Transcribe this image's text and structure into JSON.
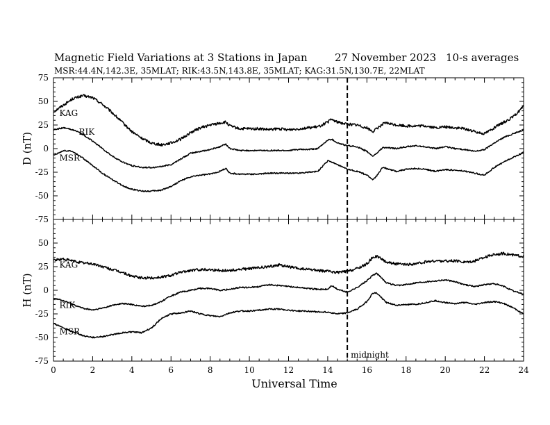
{
  "header": {
    "title": "Magnetic Field Variations at 3 Stations in Japan",
    "date": "27 November 2023",
    "averaging": "10-s averages",
    "stations_line": "MSR:44.4N,142.3E, 35MLAT;  RIK:43.5N,143.8E, 35MLAT;  KAG:31.5N,130.7E, 22MLAT"
  },
  "chart_data": [
    {
      "type": "line",
      "panel": "D",
      "ylabel": "D (nT)",
      "xlabel": "",
      "xlim": [
        0,
        24
      ],
      "ylim": [
        -75,
        75
      ],
      "y_ticks": [
        75,
        50,
        25,
        0,
        -25,
        -50,
        -75
      ],
      "series": [
        {
          "name": "KAG",
          "x": [
            0,
            0.5,
            1,
            1.5,
            2,
            2.5,
            3,
            3.5,
            4,
            4.5,
            5,
            5.5,
            6,
            6.5,
            7,
            7.5,
            8,
            8.5,
            8.8,
            9,
            9.5,
            10,
            10.5,
            11,
            11.5,
            12,
            12.5,
            13,
            13.5,
            14,
            14.2,
            14.5,
            15,
            15.5,
            16,
            16.3,
            16.5,
            16.8,
            17,
            17.5,
            18,
            18.5,
            19,
            19.5,
            20,
            20.5,
            21,
            21.5,
            22,
            22.5,
            23,
            23.5,
            24
          ],
          "y": [
            39,
            46,
            53,
            56,
            54,
            47,
            38,
            28,
            18,
            11,
            6,
            4,
            6,
            10,
            17,
            22,
            25,
            27,
            28,
            24,
            21,
            21,
            21,
            20,
            21,
            20,
            21,
            22,
            23,
            28,
            31,
            28,
            26,
            25,
            22,
            18,
            21,
            26,
            27,
            25,
            24,
            24,
            24,
            22,
            23,
            22,
            21,
            18,
            16,
            22,
            28,
            34,
            45
          ]
        },
        {
          "name": "RIK",
          "x": [
            0,
            0.5,
            1,
            1.5,
            2,
            2.5,
            3,
            3.5,
            4,
            4.5,
            5,
            5.5,
            6,
            6.5,
            7,
            7.5,
            8,
            8.5,
            8.8,
            9,
            9.5,
            10,
            10.5,
            11,
            11.5,
            12,
            12.5,
            13,
            13.5,
            14,
            14.2,
            14.5,
            15,
            15.5,
            16,
            16.3,
            16.5,
            16.8,
            17,
            17.5,
            18,
            18.5,
            19,
            19.5,
            20,
            20.5,
            21,
            21.5,
            22,
            22.5,
            23,
            23.5,
            24
          ],
          "y": [
            20,
            22,
            20,
            15,
            8,
            0,
            -8,
            -14,
            -18,
            -20,
            -20,
            -19,
            -17,
            -11,
            -5,
            -3,
            -1,
            2,
            5,
            0,
            -2,
            -2,
            -2,
            -2,
            -2,
            -2,
            -1,
            -1,
            0,
            9,
            10,
            6,
            3,
            2,
            -3,
            -8,
            -5,
            1,
            1,
            0,
            2,
            3,
            2,
            0,
            2,
            0,
            -1,
            -3,
            -1,
            6,
            12,
            16,
            20
          ]
        },
        {
          "name": "MSR",
          "x": [
            0,
            0.5,
            1,
            1.5,
            2,
            2.5,
            3,
            3.5,
            4,
            4.5,
            5,
            5.5,
            6,
            6.5,
            7,
            7.5,
            8,
            8.5,
            8.8,
            9,
            9.5,
            10,
            10.5,
            11,
            11.5,
            12,
            12.5,
            13,
            13.5,
            14,
            14.2,
            14.5,
            15,
            15.5,
            16,
            16.3,
            16.5,
            16.8,
            17,
            17.5,
            18,
            18.5,
            19,
            19.5,
            20,
            20.5,
            21,
            21.5,
            22,
            22.5,
            23,
            23.5,
            24
          ],
          "y": [
            -7,
            -2,
            -3,
            -10,
            -18,
            -26,
            -33,
            -39,
            -43,
            -45,
            -45,
            -44,
            -40,
            -34,
            -30,
            -28,
            -27,
            -24,
            -21,
            -26,
            -27,
            -27,
            -27,
            -26,
            -26,
            -26,
            -26,
            -25,
            -24,
            -13,
            -14,
            -17,
            -22,
            -24,
            -28,
            -33,
            -29,
            -20,
            -21,
            -24,
            -22,
            -21,
            -22,
            -24,
            -22,
            -23,
            -24,
            -26,
            -28,
            -20,
            -14,
            -9,
            -4
          ]
        }
      ]
    },
    {
      "type": "line",
      "panel": "H",
      "ylabel": "H (nT)",
      "xlabel": "Universal Time",
      "xlim": [
        0,
        24
      ],
      "ylim": [
        -75,
        75
      ],
      "x_ticks": [
        0,
        2,
        4,
        6,
        8,
        10,
        12,
        14,
        16,
        18,
        20,
        22,
        24
      ],
      "y_ticks": [
        50,
        25,
        0,
        -25,
        -50,
        -75
      ],
      "series": [
        {
          "name": "KAG",
          "x": [
            0,
            0.5,
            1,
            1.5,
            2,
            2.5,
            3,
            3.5,
            4,
            4.5,
            5,
            5.5,
            6,
            6.5,
            7,
            7.5,
            8,
            8.5,
            9,
            9.5,
            10,
            10.5,
            11,
            11.5,
            12,
            12.5,
            13,
            13.5,
            14,
            14.5,
            15,
            15.5,
            16,
            16.3,
            16.5,
            17,
            17.5,
            18,
            18.5,
            19,
            19.5,
            20,
            20.5,
            21,
            21.5,
            22,
            22.5,
            23,
            23.5,
            24
          ],
          "y": [
            32,
            33,
            31,
            29,
            28,
            25,
            22,
            19,
            15,
            13,
            13,
            14,
            16,
            19,
            21,
            22,
            22,
            21,
            21,
            22,
            23,
            24,
            25,
            27,
            25,
            23,
            22,
            21,
            20,
            19,
            20,
            23,
            28,
            35,
            36,
            30,
            28,
            27,
            28,
            30,
            31,
            31,
            31,
            30,
            31,
            35,
            38,
            39,
            37,
            36
          ]
        },
        {
          "name": "RIK",
          "x": [
            0,
            0.5,
            1,
            1.5,
            2,
            2.5,
            3,
            3.5,
            4,
            4.5,
            5,
            5.5,
            6,
            6.5,
            7,
            7.5,
            8,
            8.5,
            9,
            9.5,
            10,
            10.5,
            11,
            11.5,
            12,
            12.5,
            13,
            13.5,
            14,
            14.2,
            14.5,
            15,
            15.5,
            16,
            16.3,
            16.5,
            17,
            17.5,
            18,
            18.5,
            19,
            19.5,
            20,
            20.5,
            21,
            21.5,
            22,
            22.5,
            23,
            23.5,
            24
          ],
          "y": [
            -8,
            -11,
            -15,
            -19,
            -21,
            -19,
            -16,
            -14,
            -15,
            -17,
            -16,
            -12,
            -6,
            -2,
            0,
            2,
            2,
            0,
            1,
            3,
            3,
            4,
            6,
            5,
            4,
            3,
            2,
            1,
            1,
            5,
            1,
            -2,
            3,
            10,
            16,
            18,
            8,
            5,
            6,
            8,
            9,
            10,
            11,
            9,
            6,
            4,
            6,
            7,
            4,
            -1,
            -4
          ]
        },
        {
          "name": "MSR",
          "x": [
            0,
            0.5,
            1,
            1.5,
            2,
            2.5,
            3,
            3.5,
            4,
            4.5,
            5,
            5.5,
            6,
            6.5,
            7,
            7.5,
            8,
            8.5,
            9,
            9.5,
            10,
            10.5,
            11,
            11.5,
            12,
            12.5,
            13,
            13.5,
            14,
            14.5,
            15,
            15.5,
            16,
            16.3,
            16.5,
            17,
            17.5,
            18,
            18.5,
            19,
            19.5,
            20,
            20.5,
            21,
            21.5,
            22,
            22.5,
            23,
            23.5,
            24
          ],
          "y": [
            -35,
            -40,
            -44,
            -48,
            -50,
            -49,
            -47,
            -45,
            -44,
            -45,
            -40,
            -30,
            -25,
            -24,
            -22,
            -25,
            -27,
            -28,
            -24,
            -22,
            -22,
            -21,
            -20,
            -20,
            -21,
            -22,
            -22,
            -23,
            -23,
            -25,
            -24,
            -20,
            -12,
            -3,
            -3,
            -13,
            -16,
            -15,
            -15,
            -13,
            -11,
            -13,
            -14,
            -13,
            -15,
            -13,
            -12,
            -14,
            -19,
            -25
          ]
        }
      ]
    }
  ],
  "annotations": {
    "marker_ut": 15,
    "marker_label": "midnight"
  },
  "colors": {
    "line": "#000000",
    "background": "#ffffff"
  }
}
